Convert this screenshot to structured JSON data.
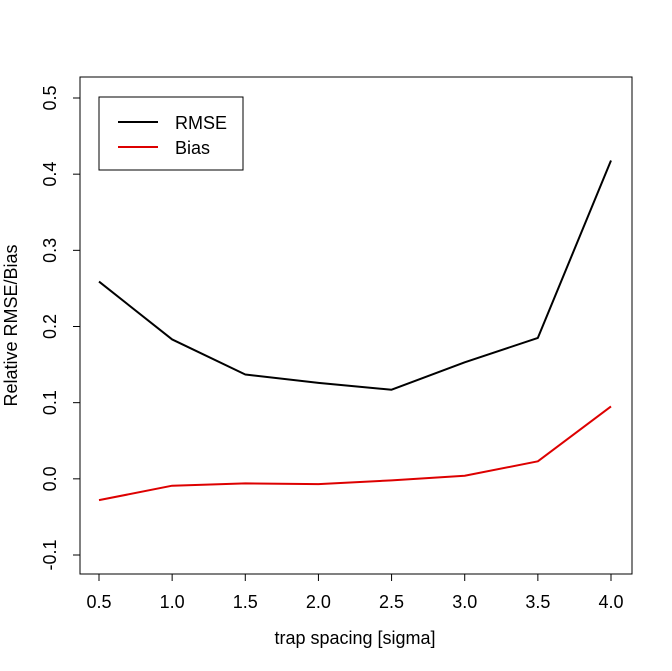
{
  "chart_data": {
    "type": "line",
    "title": "",
    "xlabel": "trap spacing [sigma]",
    "ylabel": "Relative RMSE/Bias",
    "xlim": [
      0.5,
      4.0
    ],
    "ylim": [
      -0.1,
      0.5
    ],
    "x_ticks": [
      "0.5",
      "1.0",
      "1.5",
      "2.0",
      "2.5",
      "3.0",
      "3.5",
      "4.0"
    ],
    "y_ticks": [
      "-0.1",
      "0.0",
      "0.1",
      "0.2",
      "0.3",
      "0.4",
      "0.5"
    ],
    "x": [
      0.5,
      1.0,
      1.5,
      2.0,
      2.5,
      3.0,
      3.5,
      4.0
    ],
    "series": [
      {
        "name": "RMSE",
        "color": "#000000",
        "values": [
          0.259,
          0.183,
          0.137,
          0.126,
          0.117,
          0.153,
          0.185,
          0.418
        ]
      },
      {
        "name": "Bias",
        "color": "#dd0000",
        "values": [
          -0.028,
          -0.009,
          -0.006,
          -0.007,
          -0.002,
          0.004,
          0.023,
          0.095
        ]
      }
    ],
    "legend": {
      "position": "top-left"
    },
    "grid": false
  }
}
